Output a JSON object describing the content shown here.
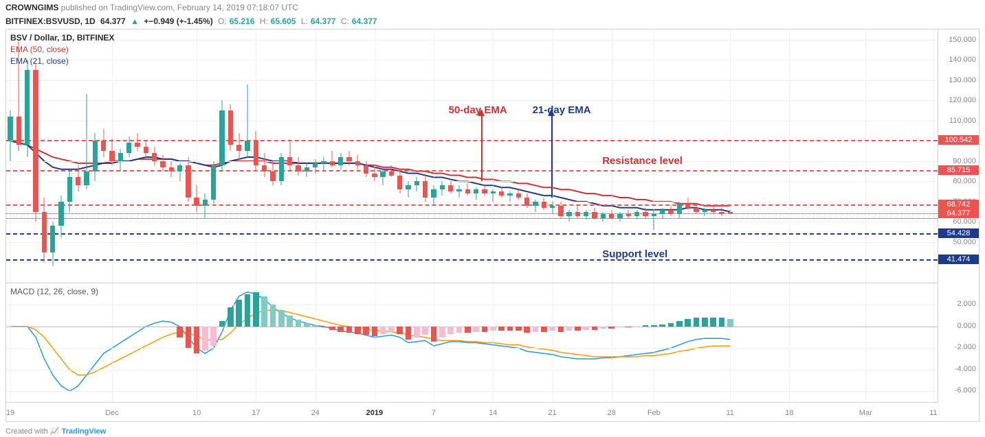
{
  "header": {
    "author": "CROWNGIMS",
    "published_on": "published on TradingView.com,",
    "timestamp": "February 14, 2019 07:18:07 UTC"
  },
  "ticker": {
    "symbol": "BITFINEX:BSVUSD, 1D",
    "last": "64.377",
    "arrow": "▲",
    "change": "+−0.949 (+-1.45%)",
    "O": "65.216",
    "H": "65.605",
    "L": "64.377",
    "C": "64.377"
  },
  "legend_price": {
    "title": "BSV / Dollar, 1D, BITFINEX",
    "ema50": "EMA (50, close)",
    "ema21": "EMA (21, close)",
    "ema50_color": "#d32f2f",
    "ema21_color": "#1e3a8a"
  },
  "legend_macd": "MACD (12, 26, close, 9)",
  "price_chart": {
    "type": "candlestick",
    "ylim": [
      30,
      155
    ],
    "yticks": [
      40,
      50,
      60,
      70,
      80,
      90,
      100,
      110,
      120,
      130,
      140,
      150
    ],
    "ytick_labels": [
      "40.000",
      "50.000",
      "60.000",
      "70.000",
      "80.000",
      "90.000",
      "100.000",
      "110.000",
      "120.000",
      "130.000",
      "140.000",
      "150.000"
    ],
    "price_marks": [
      {
        "v": 100.542,
        "label": "100.542",
        "cls": "red"
      },
      {
        "v": 85.715,
        "label": "85.715",
        "cls": "red"
      },
      {
        "v": 68.742,
        "label": "68.742",
        "cls": "red"
      },
      {
        "v": 64.377,
        "label": "64.377",
        "cls": "red"
      },
      {
        "v": 54.428,
        "label": "54.428",
        "cls": "blue"
      },
      {
        "v": 41.474,
        "label": "41.474",
        "cls": "blue"
      }
    ],
    "hlines": [
      {
        "v": 100.542,
        "cls": "hline-dash-red"
      },
      {
        "v": 85.715,
        "cls": "hline-dash-red"
      },
      {
        "v": 68.742,
        "cls": "hline-dash-red"
      },
      {
        "v": 64.377,
        "cls": "hline-dot-red"
      },
      {
        "v": 62.0,
        "cls": "hline-dot-red"
      },
      {
        "v": 54.428,
        "cls": "hline-dash-blue"
      },
      {
        "v": 41.474,
        "cls": "hline-dash-blue"
      }
    ],
    "annotations": [
      {
        "text": "50-day EMA",
        "x": 0.475,
        "y_v": 118,
        "cls": "red"
      },
      {
        "text": "21-day EMA",
        "x": 0.565,
        "y_v": 118,
        "cls": "blue"
      },
      {
        "text": "Resistance level",
        "x": 0.64,
        "y_v": 93,
        "cls": "red"
      },
      {
        "text": "Support level",
        "x": 0.64,
        "y_v": 47,
        "cls": "blue"
      }
    ],
    "arrows": [
      {
        "x": 0.51,
        "y1_v": 80,
        "y2_v": 115,
        "color": "#d32f2f"
      },
      {
        "x": 0.585,
        "y1_v": 72,
        "y2_v": 115,
        "color": "#1e3a8a"
      }
    ],
    "colors": {
      "up": "#26a69a",
      "down": "#ef5350",
      "ema50": "#d32f2f",
      "ema21": "#1e3a8a"
    },
    "candles": [
      {
        "o": 100,
        "h": 115,
        "l": 90,
        "c": 112
      },
      {
        "o": 112,
        "h": 150,
        "l": 95,
        "c": 98
      },
      {
        "o": 98,
        "h": 140,
        "l": 92,
        "c": 135
      },
      {
        "o": 135,
        "h": 138,
        "l": 60,
        "c": 65
      },
      {
        "o": 65,
        "h": 72,
        "l": 40,
        "c": 45
      },
      {
        "o": 45,
        "h": 60,
        "l": 38,
        "c": 58
      },
      {
        "o": 58,
        "h": 73,
        "l": 52,
        "c": 70
      },
      {
        "o": 70,
        "h": 85,
        "l": 65,
        "c": 82
      },
      {
        "o": 82,
        "h": 88,
        "l": 75,
        "c": 78
      },
      {
        "o": 78,
        "h": 123,
        "l": 76,
        "c": 85
      },
      {
        "o": 85,
        "h": 104,
        "l": 80,
        "c": 100
      },
      {
        "o": 100,
        "h": 106,
        "l": 92,
        "c": 95
      },
      {
        "o": 95,
        "h": 101,
        "l": 88,
        "c": 90
      },
      {
        "o": 90,
        "h": 96,
        "l": 85,
        "c": 94
      },
      {
        "o": 94,
        "h": 102,
        "l": 92,
        "c": 99
      },
      {
        "o": 99,
        "h": 104,
        "l": 95,
        "c": 97
      },
      {
        "o": 97,
        "h": 100,
        "l": 92,
        "c": 94
      },
      {
        "o": 94,
        "h": 97,
        "l": 88,
        "c": 90
      },
      {
        "o": 90,
        "h": 93,
        "l": 85,
        "c": 87
      },
      {
        "o": 87,
        "h": 90,
        "l": 82,
        "c": 85
      },
      {
        "o": 85,
        "h": 89,
        "l": 80,
        "c": 88
      },
      {
        "o": 88,
        "h": 92,
        "l": 70,
        "c": 72
      },
      {
        "o": 72,
        "h": 78,
        "l": 65,
        "c": 68
      },
      {
        "o": 68,
        "h": 74,
        "l": 62,
        "c": 71
      },
      {
        "o": 71,
        "h": 90,
        "l": 69,
        "c": 88
      },
      {
        "o": 88,
        "h": 120,
        "l": 85,
        "c": 115
      },
      {
        "o": 115,
        "h": 118,
        "l": 95,
        "c": 98
      },
      {
        "o": 98,
        "h": 104,
        "l": 90,
        "c": 95
      },
      {
        "o": 95,
        "h": 128,
        "l": 92,
        "c": 100
      },
      {
        "o": 100,
        "h": 105,
        "l": 85,
        "c": 88
      },
      {
        "o": 88,
        "h": 94,
        "l": 82,
        "c": 85
      },
      {
        "o": 85,
        "h": 90,
        "l": 78,
        "c": 80
      },
      {
        "o": 80,
        "h": 94,
        "l": 78,
        "c": 92
      },
      {
        "o": 92,
        "h": 100,
        "l": 85,
        "c": 88
      },
      {
        "o": 88,
        "h": 92,
        "l": 83,
        "c": 85
      },
      {
        "o": 85,
        "h": 89,
        "l": 82,
        "c": 87
      },
      {
        "o": 87,
        "h": 91,
        "l": 84,
        "c": 89
      },
      {
        "o": 89,
        "h": 92,
        "l": 85,
        "c": 90
      },
      {
        "o": 90,
        "h": 95,
        "l": 87,
        "c": 88
      },
      {
        "o": 88,
        "h": 94,
        "l": 86,
        "c": 92
      },
      {
        "o": 92,
        "h": 95,
        "l": 88,
        "c": 90
      },
      {
        "o": 90,
        "h": 93,
        "l": 86,
        "c": 88
      },
      {
        "o": 88,
        "h": 90,
        "l": 82,
        "c": 84
      },
      {
        "o": 84,
        "h": 87,
        "l": 80,
        "c": 82
      },
      {
        "o": 82,
        "h": 86,
        "l": 78,
        "c": 85
      },
      {
        "o": 85,
        "h": 88,
        "l": 82,
        "c": 83
      },
      {
        "o": 83,
        "h": 86,
        "l": 74,
        "c": 76
      },
      {
        "o": 76,
        "h": 80,
        "l": 72,
        "c": 78
      },
      {
        "o": 78,
        "h": 82,
        "l": 75,
        "c": 80
      },
      {
        "o": 80,
        "h": 83,
        "l": 70,
        "c": 72
      },
      {
        "o": 72,
        "h": 78,
        "l": 68,
        "c": 76
      },
      {
        "o": 76,
        "h": 80,
        "l": 73,
        "c": 78
      },
      {
        "o": 78,
        "h": 80,
        "l": 74,
        "c": 75
      },
      {
        "o": 75,
        "h": 78,
        "l": 72,
        "c": 76
      },
      {
        "o": 76,
        "h": 79,
        "l": 73,
        "c": 74
      },
      {
        "o": 74,
        "h": 77,
        "l": 71,
        "c": 76
      },
      {
        "o": 76,
        "h": 78,
        "l": 73,
        "c": 74
      },
      {
        "o": 74,
        "h": 76,
        "l": 70,
        "c": 75
      },
      {
        "o": 75,
        "h": 77,
        "l": 72,
        "c": 73
      },
      {
        "o": 73,
        "h": 75,
        "l": 70,
        "c": 74
      },
      {
        "o": 74,
        "h": 76,
        "l": 71,
        "c": 72
      },
      {
        "o": 72,
        "h": 74,
        "l": 67,
        "c": 68
      },
      {
        "o": 68,
        "h": 71,
        "l": 65,
        "c": 70
      },
      {
        "o": 70,
        "h": 72,
        "l": 66,
        "c": 67
      },
      {
        "o": 67,
        "h": 70,
        "l": 64,
        "c": 68
      },
      {
        "o": 68,
        "h": 70,
        "l": 62,
        "c": 63
      },
      {
        "o": 63,
        "h": 66,
        "l": 60,
        "c": 65
      },
      {
        "o": 65,
        "h": 68,
        "l": 62,
        "c": 63
      },
      {
        "o": 63,
        "h": 66,
        "l": 61,
        "c": 65
      },
      {
        "o": 65,
        "h": 67,
        "l": 61,
        "c": 62
      },
      {
        "o": 62,
        "h": 65,
        "l": 60,
        "c": 64
      },
      {
        "o": 64,
        "h": 66,
        "l": 61,
        "c": 62
      },
      {
        "o": 62,
        "h": 65,
        "l": 60,
        "c": 64
      },
      {
        "o": 64,
        "h": 66,
        "l": 62,
        "c": 63
      },
      {
        "o": 63,
        "h": 66,
        "l": 61,
        "c": 65
      },
      {
        "o": 65,
        "h": 67,
        "l": 62,
        "c": 63
      },
      {
        "o": 63,
        "h": 66,
        "l": 56,
        "c": 64
      },
      {
        "o": 64,
        "h": 67,
        "l": 62,
        "c": 66
      },
      {
        "o": 66,
        "h": 68,
        "l": 63,
        "c": 64
      },
      {
        "o": 64,
        "h": 70,
        "l": 62,
        "c": 69
      },
      {
        "o": 69,
        "h": 72,
        "l": 66,
        "c": 67
      },
      {
        "o": 67,
        "h": 69,
        "l": 64,
        "c": 65
      },
      {
        "o": 65,
        "h": 67,
        "l": 63,
        "c": 66
      },
      {
        "o": 66,
        "h": 68,
        "l": 64,
        "c": 65
      },
      {
        "o": 65,
        "h": 67,
        "l": 63,
        "c": 64
      },
      {
        "o": 65,
        "h": 66,
        "l": 64,
        "c": 64.4
      }
    ],
    "ema50": [
      100,
      99,
      98,
      96,
      94,
      92,
      91,
      90,
      89,
      89,
      89,
      89,
      90,
      90,
      90,
      91,
      91,
      91,
      91,
      91,
      90,
      90,
      89,
      88,
      88,
      89,
      90,
      90,
      90,
      90,
      90,
      89,
      89,
      89,
      89,
      89,
      89,
      89,
      89,
      89,
      89,
      89,
      88,
      88,
      87,
      87,
      86,
      86,
      85,
      85,
      84,
      84,
      83,
      83,
      82,
      82,
      81,
      81,
      80,
      80,
      79,
      79,
      78,
      77,
      77,
      76,
      76,
      75,
      74,
      74,
      73,
      73,
      72,
      72,
      71,
      71,
      70,
      70,
      70,
      69,
      69,
      69,
      68,
      68,
      68,
      68
    ],
    "ema21": [
      100,
      99,
      98,
      94,
      90,
      87,
      86,
      86,
      86,
      87,
      88,
      89,
      89,
      90,
      90,
      91,
      92,
      92,
      91,
      91,
      90,
      90,
      89,
      88,
      87,
      88,
      90,
      91,
      92,
      92,
      91,
      90,
      90,
      90,
      89,
      89,
      89,
      89,
      89,
      89,
      89,
      89,
      88,
      87,
      86,
      86,
      85,
      84,
      84,
      83,
      82,
      82,
      81,
      80,
      80,
      79,
      78,
      78,
      77,
      77,
      76,
      75,
      74,
      73,
      73,
      72,
      71,
      70,
      70,
      69,
      68,
      68,
      67,
      67,
      67,
      66,
      66,
      66,
      66,
      66,
      67,
      67,
      66,
      66,
      66,
      65
    ]
  },
  "macd_chart": {
    "ylim": [
      -7,
      4
    ],
    "yticks": [
      -6,
      -4,
      -2,
      0,
      2
    ],
    "ytick_labels": [
      "-6.000",
      "-4.000",
      "-2.000",
      "0.000",
      "2.000"
    ],
    "histogram": [
      0,
      0,
      0,
      0,
      0,
      0,
      0,
      0,
      0,
      0,
      0,
      0,
      0,
      0,
      0,
      0,
      0,
      0,
      0,
      0,
      -1.0,
      -2.0,
      -2.5,
      -2.2,
      -1.8,
      0.5,
      1.8,
      2.5,
      3.0,
      3.2,
      2.8,
      2.0,
      1.5,
      1.0,
      0.6,
      0.3,
      0.1,
      -0.1,
      -0.3,
      -0.5,
      -0.6,
      -0.7,
      -0.8,
      -0.9,
      -0.7,
      -0.5,
      -0.7,
      -1.2,
      -1.0,
      -0.8,
      -1.4,
      -1.0,
      -0.7,
      -0.6,
      -0.6,
      -0.5,
      -0.5,
      -0.4,
      -0.4,
      -0.4,
      -0.4,
      -0.6,
      -0.5,
      -0.5,
      -0.4,
      -0.5,
      -0.4,
      -0.4,
      -0.3,
      -0.3,
      -0.2,
      -0.2,
      -0.1,
      -0.1,
      0.0,
      0.1,
      0.1,
      0.2,
      0.3,
      0.5,
      0.7,
      0.8,
      0.8,
      0.8,
      0.8,
      0.7
    ],
    "macd_line": [
      0,
      0,
      0,
      -1,
      -3,
      -4.5,
      -5.5,
      -6,
      -5.5,
      -4.5,
      -3.5,
      -2.5,
      -2,
      -1.5,
      -1,
      -0.5,
      0,
      0.3,
      0.5,
      0.4,
      0,
      -1,
      -2,
      -2.5,
      -2,
      -0.5,
      1.5,
      2.8,
      3.2,
      3.0,
      2.5,
      1.8,
      1.2,
      0.8,
      0.5,
      0.3,
      0.1,
      0,
      -0.2,
      -0.4,
      -0.5,
      -0.6,
      -0.8,
      -1.0,
      -0.9,
      -0.8,
      -1.0,
      -1.5,
      -1.4,
      -1.3,
      -1.8,
      -1.6,
      -1.4,
      -1.4,
      -1.5,
      -1.5,
      -1.6,
      -1.7,
      -1.8,
      -1.9,
      -2.0,
      -2.3,
      -2.4,
      -2.5,
      -2.6,
      -2.8,
      -2.9,
      -3.0,
      -3.0,
      -3.0,
      -2.9,
      -2.9,
      -2.8,
      -2.7,
      -2.6,
      -2.5,
      -2.4,
      -2.2,
      -2.0,
      -1.7,
      -1.4,
      -1.2,
      -1.1,
      -1.1,
      -1.1,
      -1.2
    ],
    "signal_line": [
      0,
      0,
      0,
      -0.3,
      -1,
      -2,
      -3,
      -4,
      -4.5,
      -4.5,
      -4.2,
      -3.8,
      -3.4,
      -3.0,
      -2.6,
      -2.2,
      -1.8,
      -1.4,
      -1.0,
      -0.7,
      -0.5,
      -0.6,
      -0.9,
      -1.2,
      -1.3,
      -1.2,
      -0.6,
      0.2,
      0.8,
      1.2,
      1.5,
      1.5,
      1.5,
      1.3,
      1.1,
      0.9,
      0.7,
      0.5,
      0.3,
      0.1,
      0,
      -0.1,
      -0.2,
      -0.4,
      -0.4,
      -0.5,
      -0.6,
      -0.8,
      -0.9,
      -1.0,
      -1.2,
      -1.3,
      -1.3,
      -1.3,
      -1.4,
      -1.4,
      -1.5,
      -1.5,
      -1.6,
      -1.7,
      -1.7,
      -1.9,
      -2.0,
      -2.1,
      -2.2,
      -2.4,
      -2.5,
      -2.6,
      -2.7,
      -2.8,
      -2.8,
      -2.8,
      -2.8,
      -2.8,
      -2.8,
      -2.7,
      -2.7,
      -2.6,
      -2.5,
      -2.3,
      -2.2,
      -2.0,
      -1.9,
      -1.8,
      -1.8,
      -1.8
    ],
    "colors": {
      "macd": "#2196f3",
      "signal": "#ff9800"
    }
  },
  "time_axis": {
    "n": 110,
    "start_offset": 0,
    "ticks": [
      {
        "i": 0,
        "label": "19"
      },
      {
        "i": 12,
        "label": "Dec"
      },
      {
        "i": 22,
        "label": "10"
      },
      {
        "i": 29,
        "label": "17"
      },
      {
        "i": 36,
        "label": "24"
      },
      {
        "i": 43,
        "label": "2019",
        "bold": true
      },
      {
        "i": 50,
        "label": "7"
      },
      {
        "i": 57,
        "label": "14"
      },
      {
        "i": 64,
        "label": "21"
      },
      {
        "i": 71,
        "label": "28"
      },
      {
        "i": 76,
        "label": "Feb"
      },
      {
        "i": 85,
        "label": "11"
      },
      {
        "i": 92,
        "label": "18"
      },
      {
        "i": 101,
        "label": "Mar"
      },
      {
        "i": 109,
        "label": "11"
      }
    ]
  },
  "footer": {
    "text": "Created with",
    "brand": "TradingView"
  }
}
